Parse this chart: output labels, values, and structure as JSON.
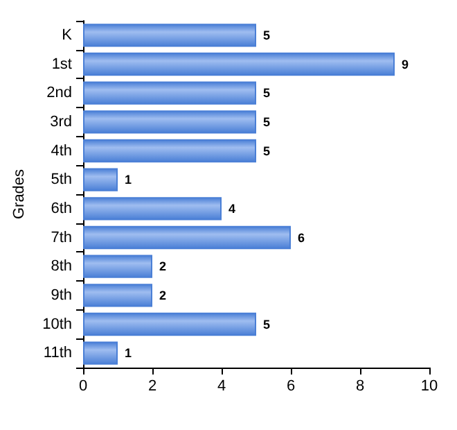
{
  "chart_data": {
    "type": "bar",
    "orientation": "horizontal",
    "ylabel": "Grades",
    "categories": [
      "K",
      "1st",
      "2nd",
      "3rd",
      "4th",
      "5th",
      "6th",
      "7th",
      "8th",
      "9th",
      "10th",
      "11th"
    ],
    "values": [
      5,
      9,
      5,
      5,
      5,
      1,
      4,
      6,
      2,
      2,
      5,
      1
    ],
    "color": "#4a7fd6",
    "xlim": [
      0,
      10
    ],
    "xticks": [
      0,
      2,
      4,
      6,
      8,
      10
    ],
    "grid": false,
    "data_labels": true
  }
}
